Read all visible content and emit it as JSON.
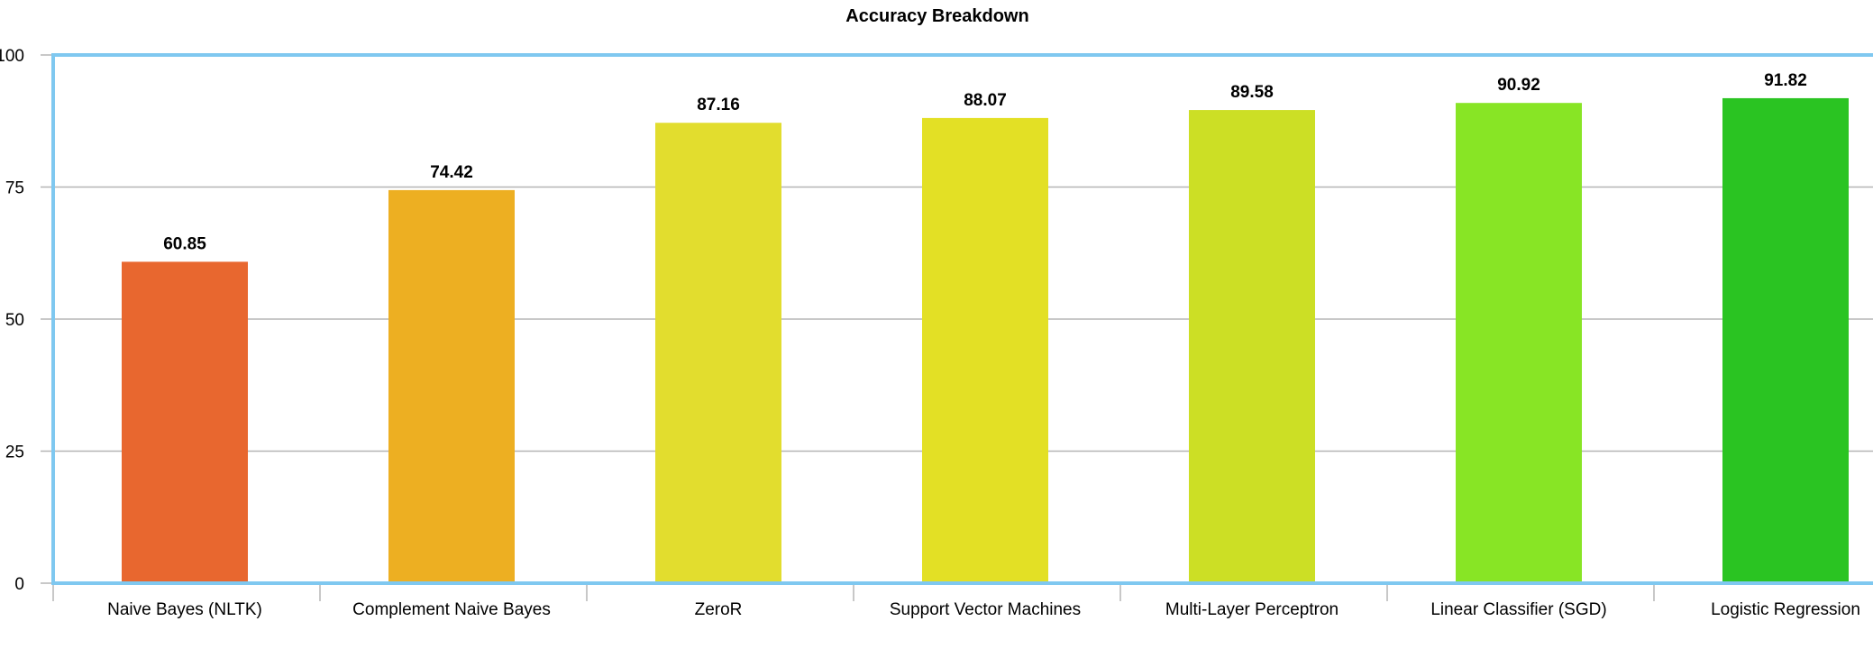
{
  "chart_data": {
    "type": "bar",
    "title": "Accuracy Breakdown",
    "xlabel": "",
    "ylabel": "",
    "ylim": [
      0,
      100
    ],
    "yticks": [
      0,
      25,
      50,
      75,
      100
    ],
    "grid": true,
    "legend": "none",
    "categories": [
      "Naive Bayes (NLTK)",
      "Complement Naive Bayes",
      "ZeroR",
      "Support Vector Machines",
      "Multi-Layer Perceptron",
      "Linear Classifier (SGD)",
      "Logistic Regression"
    ],
    "values": [
      60.85,
      74.42,
      87.16,
      88.07,
      89.58,
      90.92,
      91.82
    ],
    "data_labels": [
      "60.85",
      "74.42",
      "87.16",
      "88.07",
      "89.58",
      "90.92",
      "91.82"
    ],
    "bar_colors": [
      "#E8672F",
      "#EDAF22",
      "#E2DD2E",
      "#E3E025",
      "#CCDF25",
      "#88E525",
      "#2AC422"
    ],
    "axis_color": "#7FC8F0",
    "grid_color": "#B5B5B5"
  }
}
